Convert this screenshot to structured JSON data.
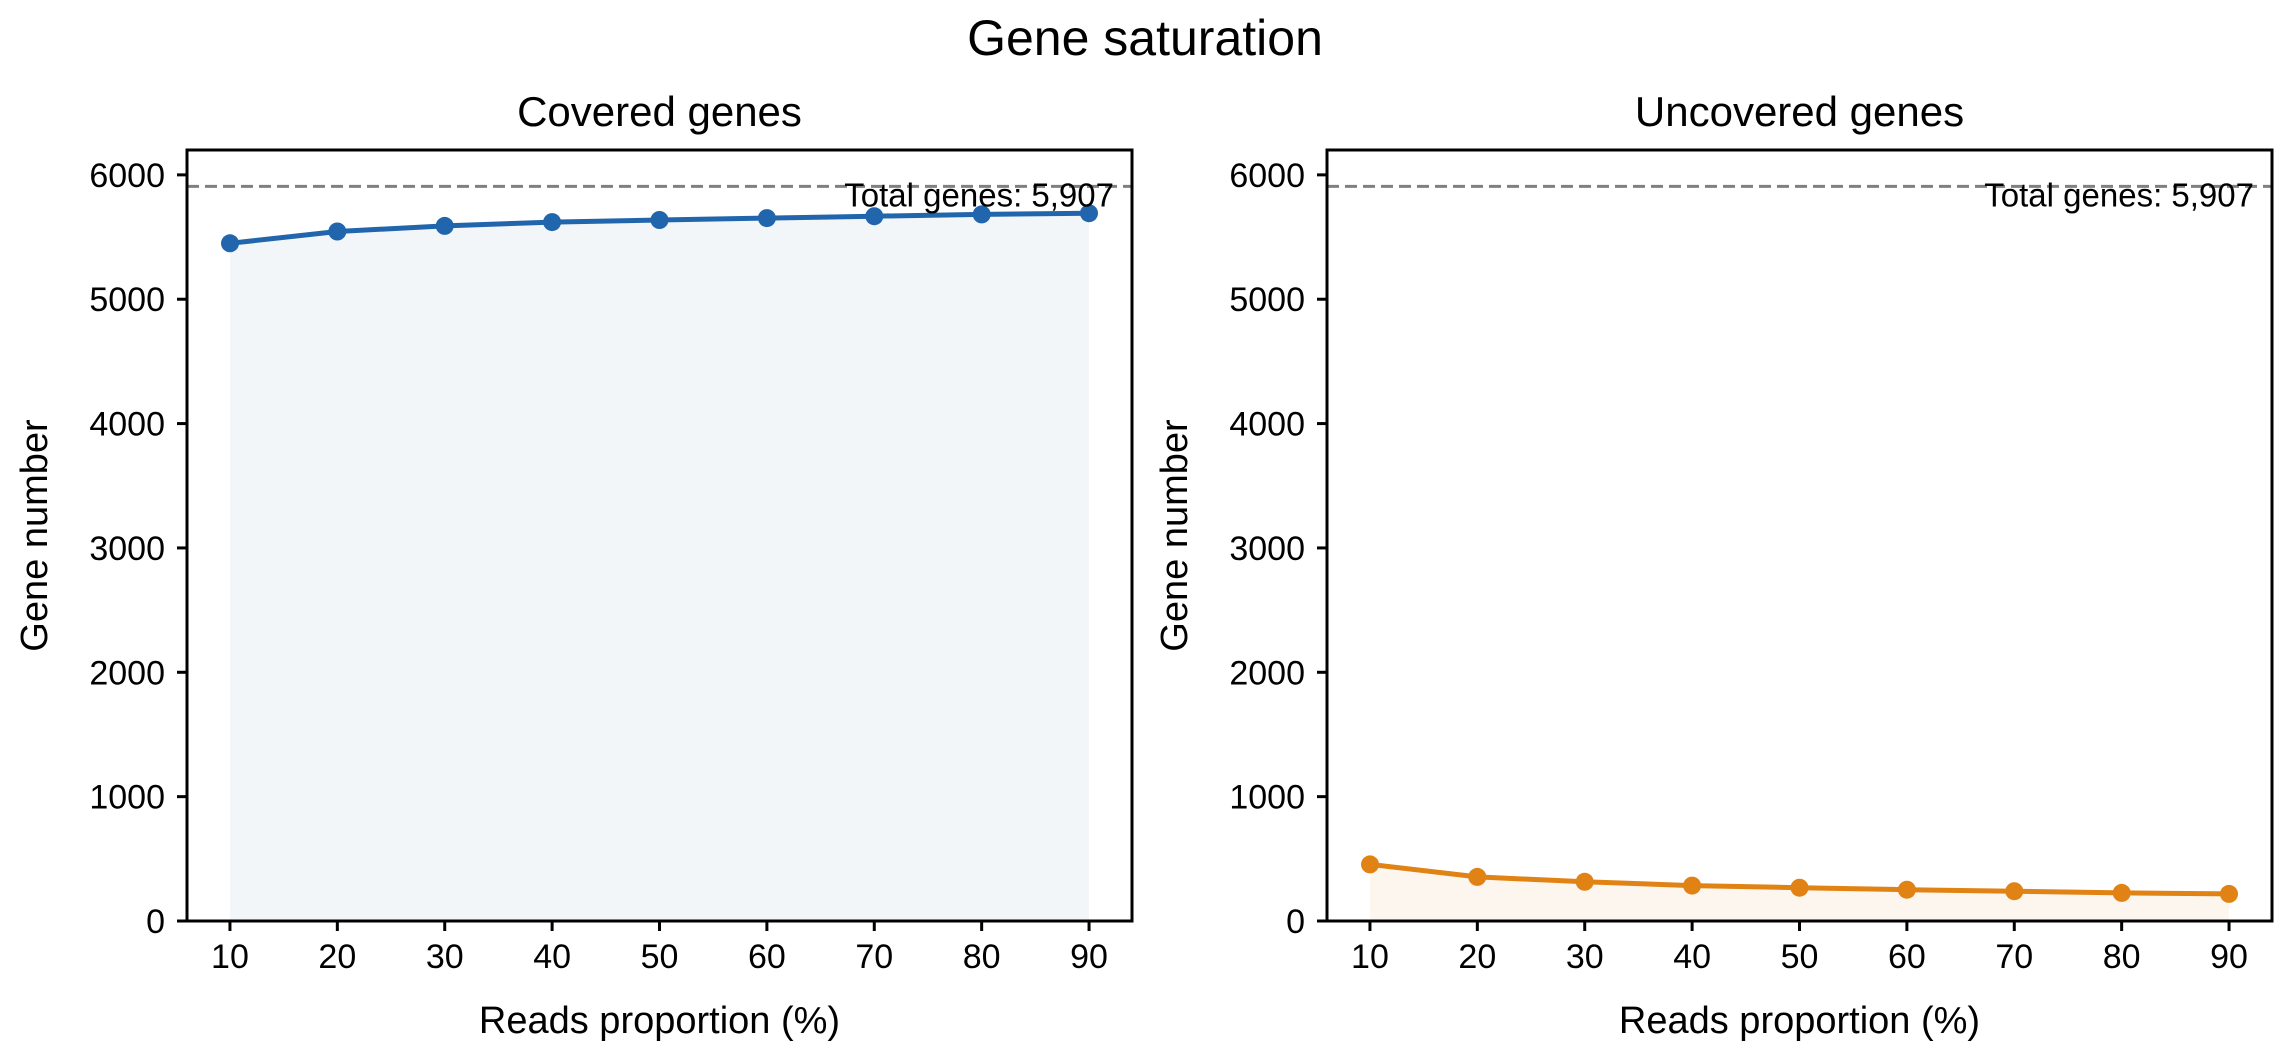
{
  "figure": {
    "title": "Gene saturation"
  },
  "chart_data": [
    {
      "type": "line",
      "title": "Covered genes",
      "xlabel": "Reads proportion (%)",
      "ylabel": "Gene number",
      "x": [
        10,
        20,
        30,
        40,
        50,
        60,
        70,
        80,
        90
      ],
      "series": [
        {
          "values": [
            5450,
            5545,
            5590,
            5620,
            5637,
            5652,
            5668,
            5682,
            5692
          ],
          "color": "#2166ac",
          "fill": "#f2f6f9"
        }
      ],
      "xticks": [
        "10",
        "20",
        "30",
        "40",
        "50",
        "60",
        "70",
        "80",
        "90"
      ],
      "yticks": [
        "0",
        "1000",
        "2000",
        "3000",
        "4000",
        "5000",
        "6000"
      ],
      "xlim": [
        6,
        94
      ],
      "ylim": [
        0,
        6200
      ],
      "reference_line": {
        "value": 5907,
        "label": "Total genes: 5,907",
        "color": "#808080",
        "style": "dashed"
      },
      "grid": false
    },
    {
      "type": "line",
      "title": "Uncovered genes",
      "xlabel": "Reads proportion (%)",
      "ylabel": "Gene number",
      "x": [
        10,
        20,
        30,
        40,
        50,
        60,
        70,
        80,
        90
      ],
      "series": [
        {
          "values": [
            455,
            355,
            315,
            285,
            268,
            252,
            240,
            226,
            218
          ],
          "color": "#e08214",
          "fill": "#fdf6ef"
        }
      ],
      "xticks": [
        "10",
        "20",
        "30",
        "40",
        "50",
        "60",
        "70",
        "80",
        "90"
      ],
      "yticks": [
        "0",
        "1000",
        "2000",
        "3000",
        "4000",
        "5000",
        "6000"
      ],
      "xlim": [
        6,
        94
      ],
      "ylim": [
        0,
        6200
      ],
      "reference_line": {
        "value": 5907,
        "label": "Total genes: 5,907",
        "color": "#808080",
        "style": "dashed"
      },
      "grid": false
    }
  ]
}
